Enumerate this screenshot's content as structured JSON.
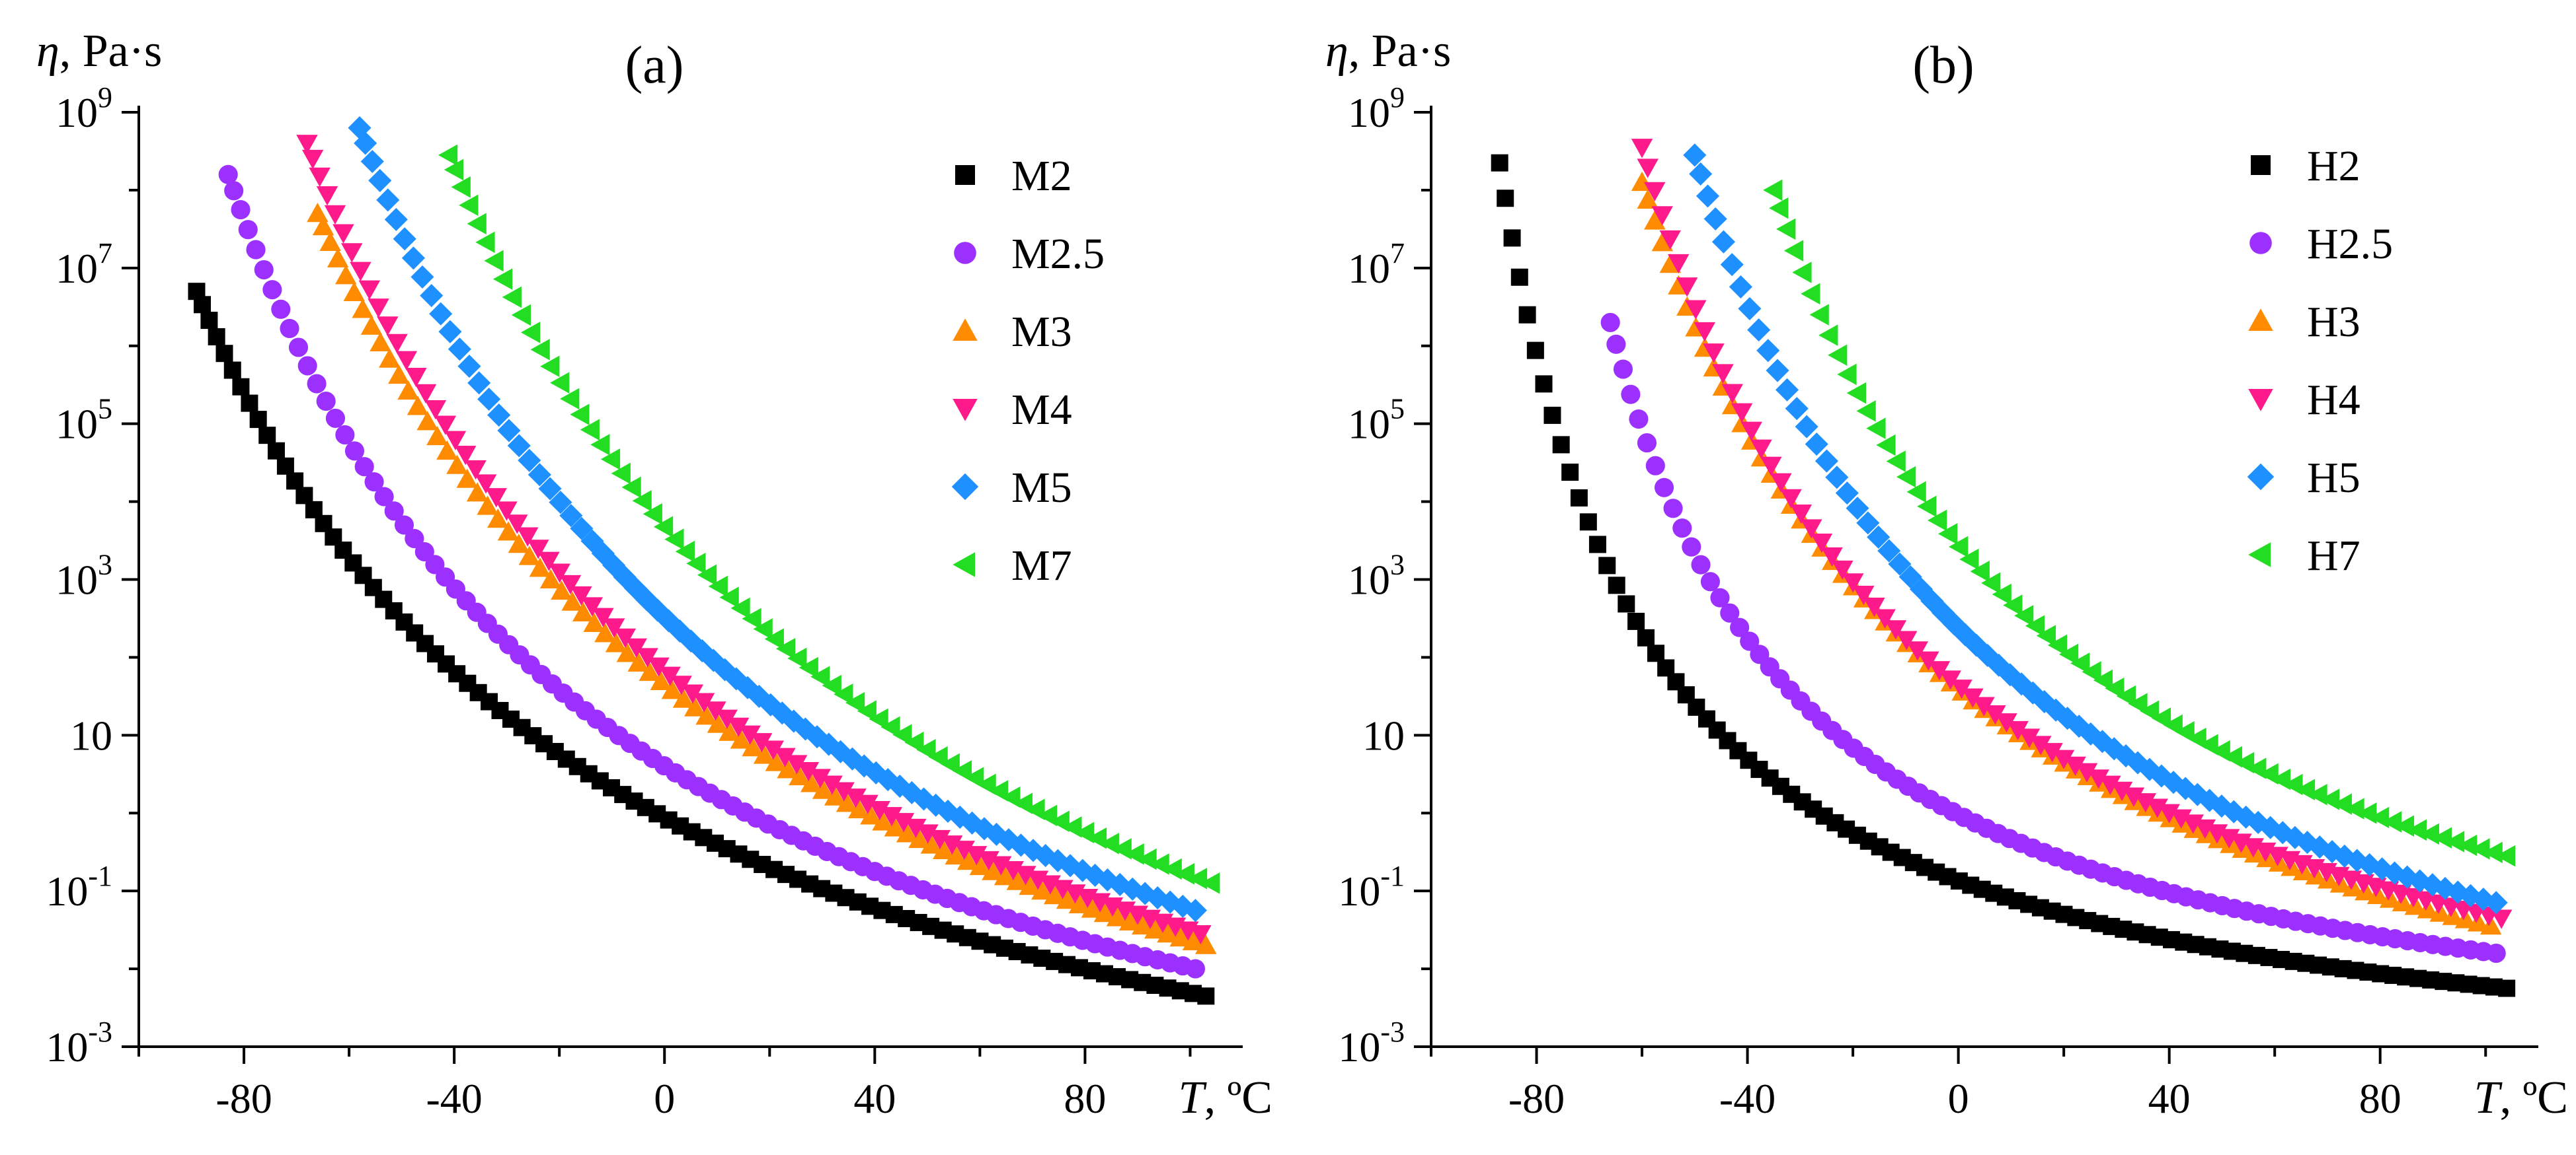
{
  "chart_data": [
    {
      "type": "scatter",
      "panel_label": "(a)",
      "ylabel_sym": "η",
      "ylabel_unit": ", Pa·s",
      "xlabel_sym": "T",
      "xlabel_unit": ", ºC",
      "x_scale": "linear",
      "y_scale": "log",
      "xlim": [
        -100,
        110
      ],
      "ylim": [
        0.001,
        1000000000
      ],
      "x_ticks": [
        -80,
        -40,
        0,
        40,
        80
      ],
      "y_ticks": [
        {
          "base": "10",
          "exp": "9",
          "value": 1000000000
        },
        {
          "base": "10",
          "exp": "7",
          "value": 10000000
        },
        {
          "base": "10",
          "exp": "5",
          "value": 100000
        },
        {
          "base": "10",
          "exp": "3",
          "value": 1000
        },
        {
          "base": "10",
          "exp": "",
          "value": 10
        },
        {
          "base": "10",
          "exp": "-1",
          "value": 0.1
        },
        {
          "base": "10",
          "exp": "-3",
          "value": 0.001
        }
      ],
      "legend_position": "top-right",
      "grid": false,
      "series": [
        {
          "name": "M2",
          "marker": "square",
          "color": "#000000",
          "x_start": -89,
          "x_end": 103,
          "logy_start": 6.7,
          "logy_mid": -0.7,
          "logy_end": -2.35
        },
        {
          "name": "M2.5",
          "marker": "circle",
          "color": "#9B30FF",
          "x_start": -83,
          "x_end": 101,
          "logy_start": 8.2,
          "logy_mid": -0.15,
          "logy_end": -2.0
        },
        {
          "name": "M3",
          "marker": "triangle-up",
          "color": "#FF8C00",
          "x_start": -66,
          "x_end": 103,
          "logy_start": 7.7,
          "logy_mid": 0.7,
          "logy_end": -1.7
        },
        {
          "name": "M4",
          "marker": "triangle-down",
          "color": "#FF1A8C",
          "x_start": -68,
          "x_end": 102,
          "logy_start": 8.6,
          "logy_mid": 0.85,
          "logy_end": -1.55
        },
        {
          "name": "M5",
          "marker": "diamond",
          "color": "#1E90FF",
          "x_start": -58,
          "x_end": 101,
          "logy_start": 8.8,
          "logy_mid": 1.4,
          "logy_end": -1.25
        },
        {
          "name": "M7",
          "marker": "triangle-left",
          "color": "#22DD22",
          "x_start": -41,
          "x_end": 104,
          "logy_start": 8.45,
          "logy_mid": 2.3,
          "logy_end": -0.9
        }
      ]
    },
    {
      "type": "scatter",
      "panel_label": "(b)",
      "ylabel_sym": "η",
      "ylabel_unit": ", Pa·s",
      "xlabel_sym": "T",
      "xlabel_unit": ", ºC",
      "x_scale": "linear",
      "y_scale": "log",
      "xlim": [
        -100,
        110
      ],
      "ylim": [
        0.001,
        1000000000
      ],
      "x_ticks": [
        -80,
        -40,
        0,
        40,
        80
      ],
      "y_ticks": [
        {
          "base": "10",
          "exp": "9",
          "value": 1000000000
        },
        {
          "base": "10",
          "exp": "7",
          "value": 10000000
        },
        {
          "base": "10",
          "exp": "5",
          "value": 100000
        },
        {
          "base": "10",
          "exp": "3",
          "value": 1000
        },
        {
          "base": "10",
          "exp": "",
          "value": 10
        },
        {
          "base": "10",
          "exp": "-1",
          "value": 0.1
        },
        {
          "base": "10",
          "exp": "-3",
          "value": 0.001
        }
      ],
      "legend_position": "top-right",
      "grid": false,
      "series": [
        {
          "name": "H2",
          "marker": "square",
          "color": "#000000",
          "x_start": -87,
          "x_end": 104,
          "logy_start": 8.35,
          "logy_mid": -1.3,
          "logy_end": -2.25
        },
        {
          "name": "H2.5",
          "marker": "circle",
          "color": "#9B30FF",
          "x_start": -66,
          "x_end": 102,
          "logy_start": 6.3,
          "logy_mid": -0.6,
          "logy_end": -1.8
        },
        {
          "name": "H3",
          "marker": "triangle-up",
          "color": "#FF8C00",
          "x_start": -60,
          "x_end": 101,
          "logy_start": 8.1,
          "logy_mid": 0.65,
          "logy_end": -1.45
        },
        {
          "name": "H4",
          "marker": "triangle-down",
          "color": "#FF1A8C",
          "x_start": -60,
          "x_end": 103,
          "logy_start": 8.55,
          "logy_mid": 0.7,
          "logy_end": -1.35
        },
        {
          "name": "H5",
          "marker": "diamond",
          "color": "#1E90FF",
          "x_start": -50,
          "x_end": 102,
          "logy_start": 8.45,
          "logy_mid": 1.25,
          "logy_end": -1.15
        },
        {
          "name": "H7",
          "marker": "triangle-left",
          "color": "#22DD22",
          "x_start": -35,
          "x_end": 104,
          "logy_start": 8.0,
          "logy_mid": 2.1,
          "logy_end": -0.55
        }
      ]
    }
  ]
}
